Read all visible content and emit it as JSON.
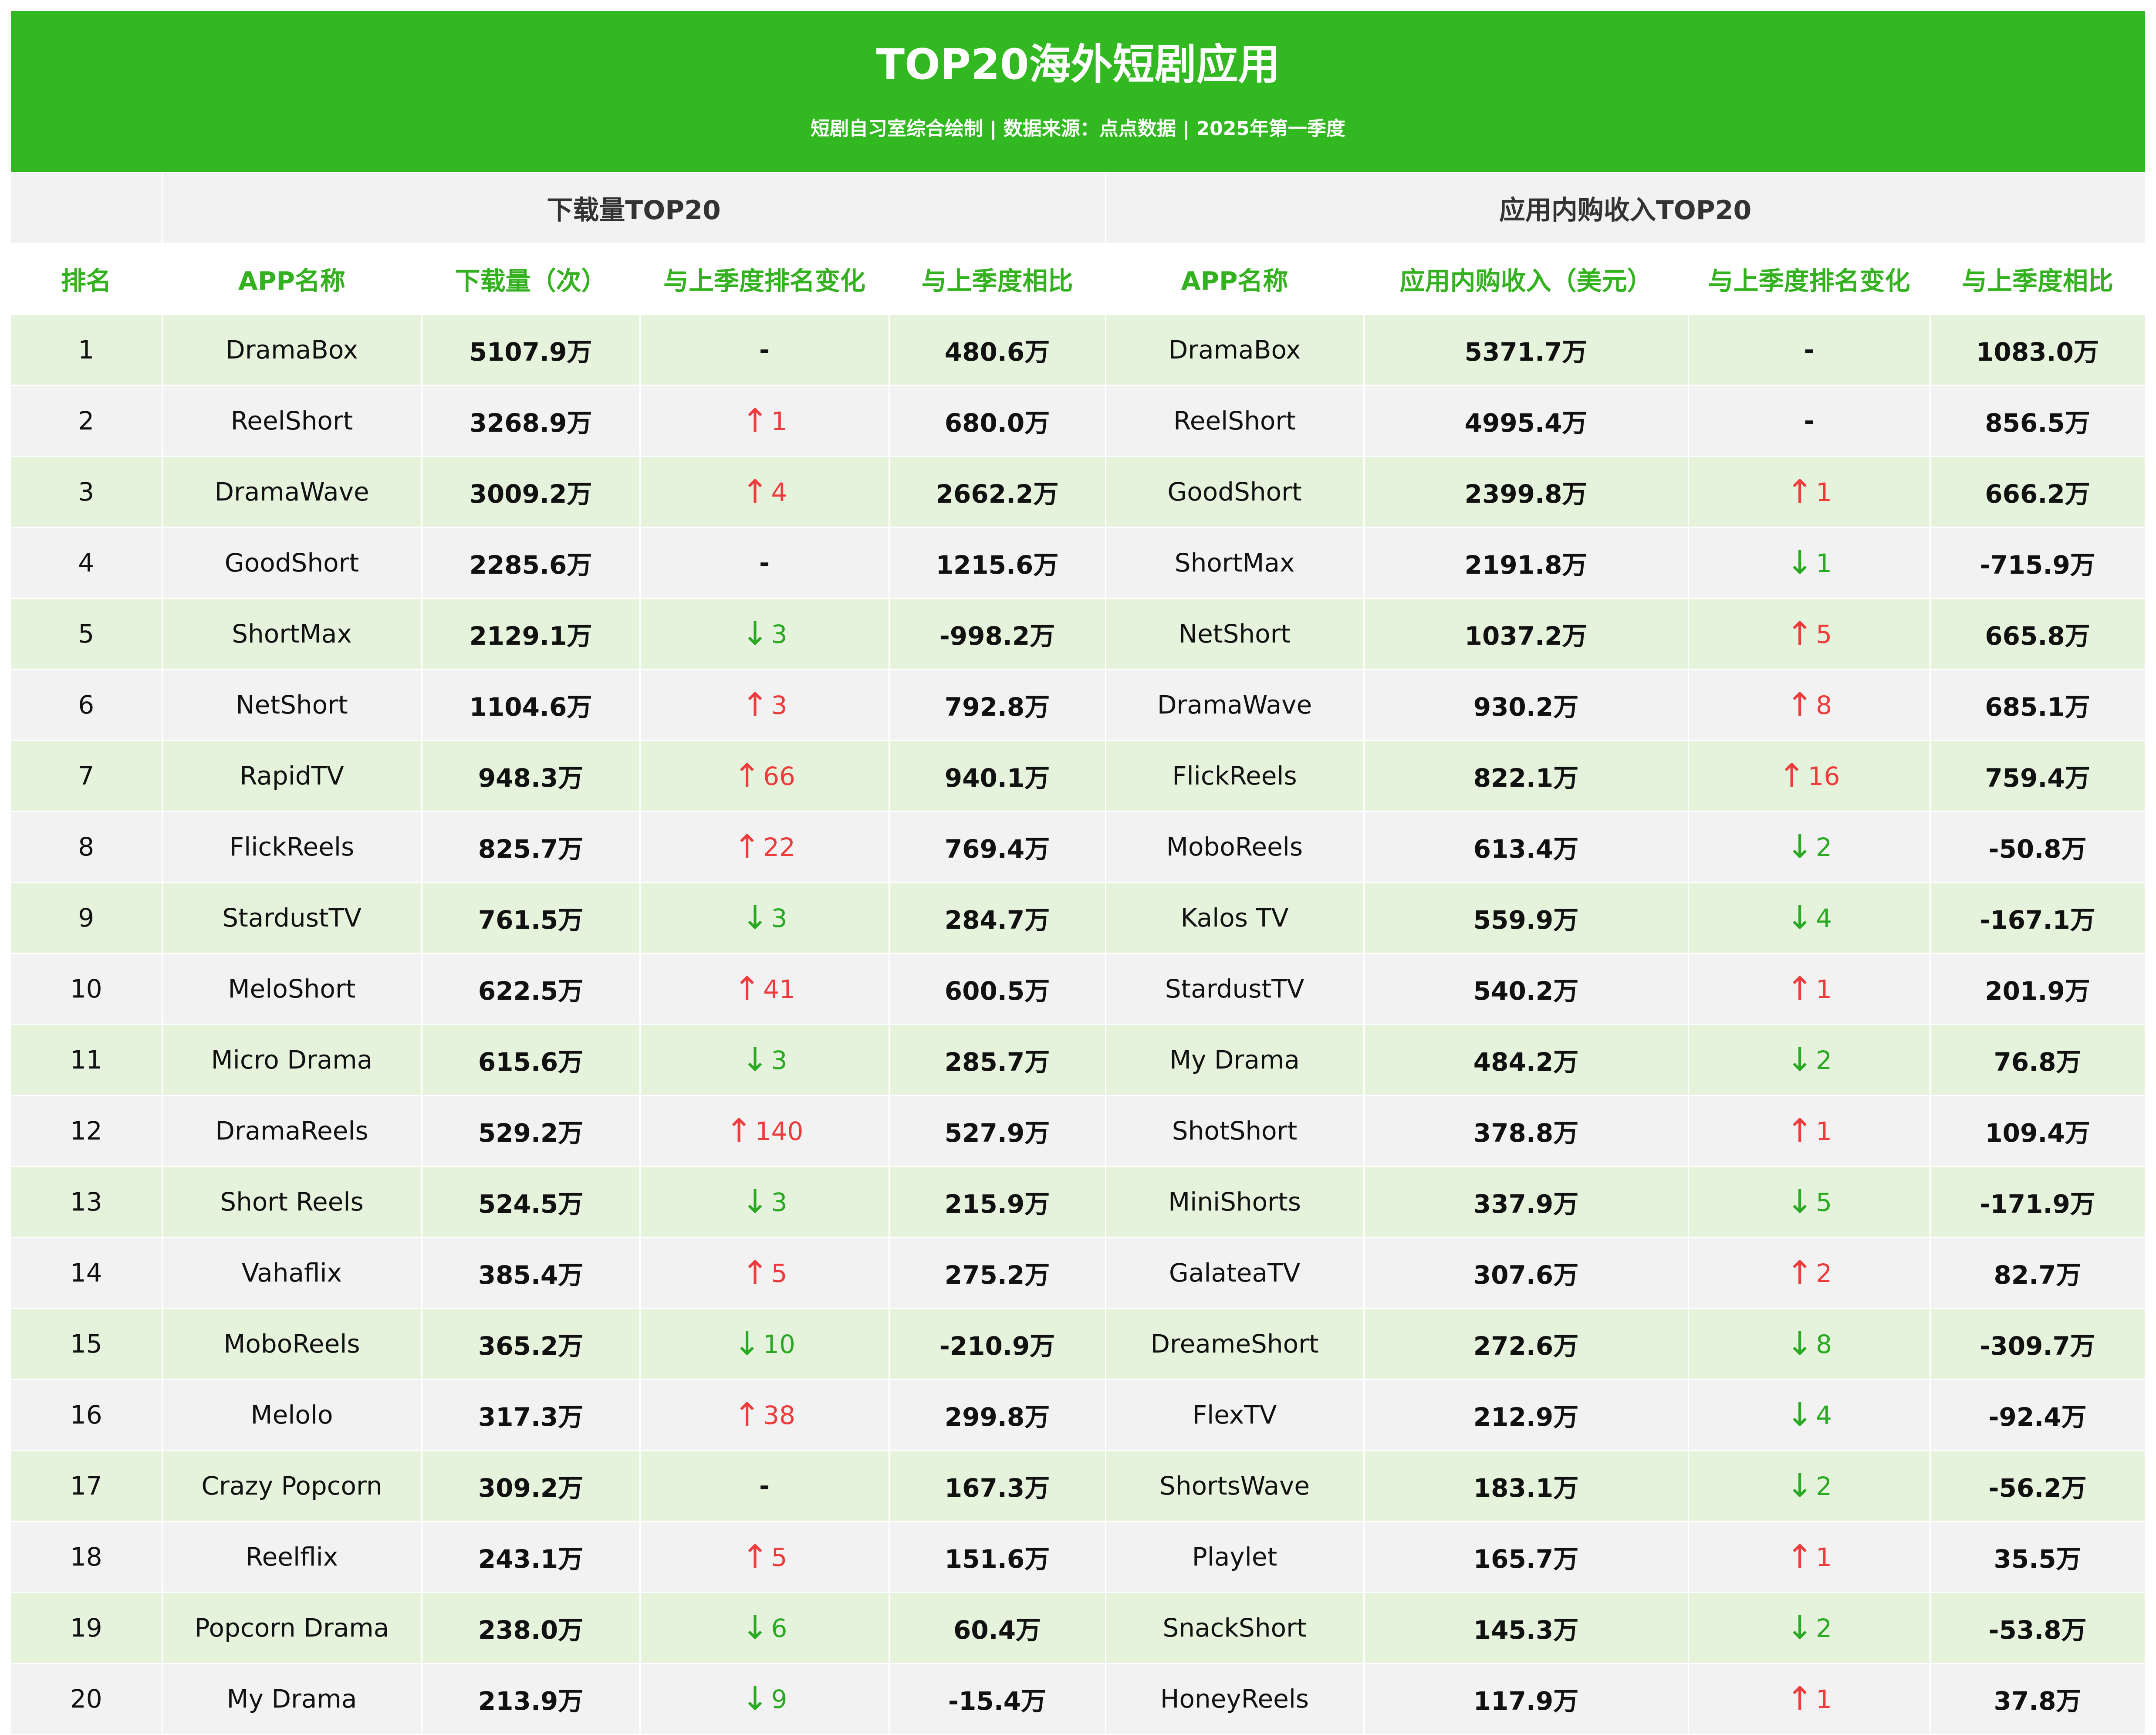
{
  "header": {
    "title": "TOP20海外短剧应用",
    "subtitle": "短剧自习室综合绘制 | 数据来源：点点数据 | 2025年第一季度"
  },
  "sections": {
    "downloads": "下载量TOP20",
    "revenue": "应用内购收入TOP20"
  },
  "columns": {
    "rank": "排名",
    "dl_app": "APP名称",
    "dl_value": "下载量（次）",
    "dl_change": "与上季度排名变化",
    "dl_diff": "与上季度相比",
    "rv_app": "APP名称",
    "rv_value": "应用内购收入（美元）",
    "rv_change": "与上季度排名变化",
    "rv_diff": "与上季度相比"
  },
  "arrow_glyphs": {
    "up": "↑",
    "down": "↓",
    "none": "-"
  },
  "colors": {
    "banner": "#32b820",
    "header_text": "#33b11f",
    "up": "#ee3b3b",
    "down": "#2aaa22",
    "row_green": "#e6f3dc",
    "row_grey": "#f2f2f2"
  },
  "rows": [
    {
      "rank": "1",
      "dl_app": "DramaBox",
      "dl_value": "5107.9万",
      "dl_dir": "none",
      "dl_change": "",
      "dl_diff": "480.6万",
      "rv_app": "DramaBox",
      "rv_value": "5371.7万",
      "rv_dir": "none",
      "rv_change": "",
      "rv_diff": "1083.0万"
    },
    {
      "rank": "2",
      "dl_app": "ReelShort",
      "dl_value": "3268.9万",
      "dl_dir": "up",
      "dl_change": "1",
      "dl_diff": "680.0万",
      "rv_app": "ReelShort",
      "rv_value": "4995.4万",
      "rv_dir": "none",
      "rv_change": "",
      "rv_diff": "856.5万"
    },
    {
      "rank": "3",
      "dl_app": "DramaWave",
      "dl_value": "3009.2万",
      "dl_dir": "up",
      "dl_change": "4",
      "dl_diff": "2662.2万",
      "rv_app": "GoodShort",
      "rv_value": "2399.8万",
      "rv_dir": "up",
      "rv_change": "1",
      "rv_diff": "666.2万"
    },
    {
      "rank": "4",
      "dl_app": "GoodShort",
      "dl_value": "2285.6万",
      "dl_dir": "none",
      "dl_change": "",
      "dl_diff": "1215.6万",
      "rv_app": "ShortMax",
      "rv_value": "2191.8万",
      "rv_dir": "down",
      "rv_change": "1",
      "rv_diff": "-715.9万"
    },
    {
      "rank": "5",
      "dl_app": "ShortMax",
      "dl_value": "2129.1万",
      "dl_dir": "down",
      "dl_change": "3",
      "dl_diff": "-998.2万",
      "rv_app": "NetShort",
      "rv_value": "1037.2万",
      "rv_dir": "up",
      "rv_change": "5",
      "rv_diff": "665.8万"
    },
    {
      "rank": "6",
      "dl_app": "NetShort",
      "dl_value": "1104.6万",
      "dl_dir": "up",
      "dl_change": "3",
      "dl_diff": "792.8万",
      "rv_app": "DramaWave",
      "rv_value": "930.2万",
      "rv_dir": "up",
      "rv_change": "8",
      "rv_diff": "685.1万"
    },
    {
      "rank": "7",
      "dl_app": "RapidTV",
      "dl_value": "948.3万",
      "dl_dir": "up",
      "dl_change": "66",
      "dl_diff": "940.1万",
      "rv_app": "FlickReels",
      "rv_value": "822.1万",
      "rv_dir": "up",
      "rv_change": "16",
      "rv_diff": "759.4万"
    },
    {
      "rank": "8",
      "dl_app": "FlickReels",
      "dl_value": "825.7万",
      "dl_dir": "up",
      "dl_change": "22",
      "dl_diff": "769.4万",
      "rv_app": "MoboReels",
      "rv_value": "613.4万",
      "rv_dir": "down",
      "rv_change": "2",
      "rv_diff": "-50.8万"
    },
    {
      "rank": "9",
      "dl_app": "StardustTV",
      "dl_value": "761.5万",
      "dl_dir": "down",
      "dl_change": "3",
      "dl_diff": "284.7万",
      "rv_app": "Kalos TV",
      "rv_value": "559.9万",
      "rv_dir": "down",
      "rv_change": "4",
      "rv_diff": "-167.1万"
    },
    {
      "rank": "10",
      "dl_app": "MeloShort",
      "dl_value": "622.5万",
      "dl_dir": "up",
      "dl_change": "41",
      "dl_diff": "600.5万",
      "rv_app": "StardustTV",
      "rv_value": "540.2万",
      "rv_dir": "up",
      "rv_change": "1",
      "rv_diff": "201.9万"
    },
    {
      "rank": "11",
      "dl_app": "Micro Drama",
      "dl_value": "615.6万",
      "dl_dir": "down",
      "dl_change": "3",
      "dl_diff": "285.7万",
      "rv_app": "My Drama",
      "rv_value": "484.2万",
      "rv_dir": "down",
      "rv_change": "2",
      "rv_diff": "76.8万"
    },
    {
      "rank": "12",
      "dl_app": "DramaReels",
      "dl_value": "529.2万",
      "dl_dir": "up",
      "dl_change": "140",
      "dl_diff": "527.9万",
      "rv_app": "ShotShort",
      "rv_value": "378.8万",
      "rv_dir": "up",
      "rv_change": "1",
      "rv_diff": "109.4万"
    },
    {
      "rank": "13",
      "dl_app": "Short Reels",
      "dl_value": "524.5万",
      "dl_dir": "down",
      "dl_change": "3",
      "dl_diff": "215.9万",
      "rv_app": "MiniShorts",
      "rv_value": "337.9万",
      "rv_dir": "down",
      "rv_change": "5",
      "rv_diff": "-171.9万"
    },
    {
      "rank": "14",
      "dl_app": "Vahaflix",
      "dl_value": "385.4万",
      "dl_dir": "up",
      "dl_change": "5",
      "dl_diff": "275.2万",
      "rv_app": "GalateaTV",
      "rv_value": "307.6万",
      "rv_dir": "up",
      "rv_change": "2",
      "rv_diff": "82.7万"
    },
    {
      "rank": "15",
      "dl_app": "MoboReels",
      "dl_value": "365.2万",
      "dl_dir": "down",
      "dl_change": "10",
      "dl_diff": "-210.9万",
      "rv_app": "DreameShort",
      "rv_value": "272.6万",
      "rv_dir": "down",
      "rv_change": "8",
      "rv_diff": "-309.7万"
    },
    {
      "rank": "16",
      "dl_app": "Melolo",
      "dl_value": "317.3万",
      "dl_dir": "up",
      "dl_change": "38",
      "dl_diff": "299.8万",
      "rv_app": "FlexTV",
      "rv_value": "212.9万",
      "rv_dir": "down",
      "rv_change": "4",
      "rv_diff": "-92.4万"
    },
    {
      "rank": "17",
      "dl_app": "Crazy Popcorn",
      "dl_value": "309.2万",
      "dl_dir": "none",
      "dl_change": "",
      "dl_diff": "167.3万",
      "rv_app": "ShortsWave",
      "rv_value": "183.1万",
      "rv_dir": "down",
      "rv_change": "2",
      "rv_diff": "-56.2万"
    },
    {
      "rank": "18",
      "dl_app": "Reelflix",
      "dl_value": "243.1万",
      "dl_dir": "up",
      "dl_change": "5",
      "dl_diff": "151.6万",
      "rv_app": "Playlet",
      "rv_value": "165.7万",
      "rv_dir": "up",
      "rv_change": "1",
      "rv_diff": "35.5万"
    },
    {
      "rank": "19",
      "dl_app": "Popcorn Drama",
      "dl_value": "238.0万",
      "dl_dir": "down",
      "dl_change": "6",
      "dl_diff": "60.4万",
      "rv_app": "SnackShort",
      "rv_value": "145.3万",
      "rv_dir": "down",
      "rv_change": "2",
      "rv_diff": "-53.8万"
    },
    {
      "rank": "20",
      "dl_app": "My Drama",
      "dl_value": "213.9万",
      "dl_dir": "down",
      "dl_change": "9",
      "dl_diff": "-15.4万",
      "rv_app": "HoneyReels",
      "rv_value": "117.9万",
      "rv_dir": "up",
      "rv_change": "1",
      "rv_diff": "37.8万"
    }
  ]
}
